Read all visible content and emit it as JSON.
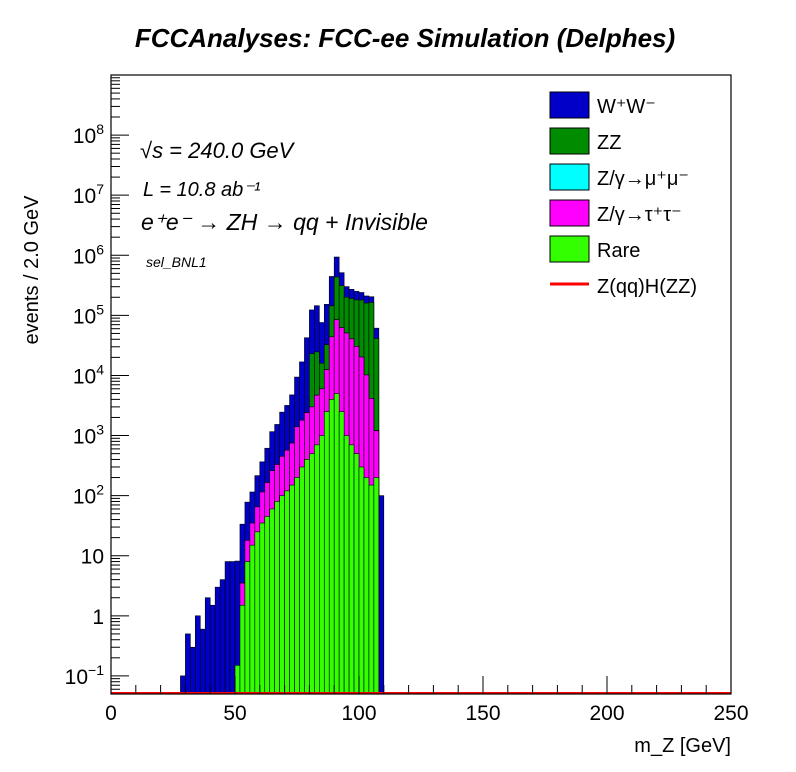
{
  "chart_data": {
    "type": "histogram-stack",
    "title": "FCCAnalyses: FCC-ee Simulation (Delphes)",
    "xlabel": "m_Z [GeV]",
    "ylabel": "events / 2.0 GeV",
    "xlim": [
      0,
      250
    ],
    "ylim": [
      0.05,
      1000000000
    ],
    "log_y": true,
    "bin_width": 2.0,
    "grid": false,
    "legend_position": "top-right",
    "x_ticks": [
      0,
      50,
      100,
      150,
      200,
      250
    ],
    "y_ticks": [
      {
        "value": 0.1,
        "label": "10",
        "exp": "−1"
      },
      {
        "value": 1,
        "label": "1",
        "exp": ""
      },
      {
        "value": 10,
        "label": "10",
        "exp": ""
      },
      {
        "value": 100,
        "label": "10",
        "exp": "2"
      },
      {
        "value": 1000,
        "label": "10",
        "exp": "3"
      },
      {
        "value": 10000,
        "label": "10",
        "exp": "4"
      },
      {
        "value": 100000,
        "label": "10",
        "exp": "5"
      },
      {
        "value": 1000000,
        "label": "10",
        "exp": "6"
      },
      {
        "value": 10000000,
        "label": "10",
        "exp": "7"
      },
      {
        "value": 100000000,
        "label": "10",
        "exp": "8"
      }
    ],
    "annotations": {
      "sqrt_s": "√s = 240.0 GeV",
      "lumi": "L = 10.8 ab⁻¹",
      "process": "e⁺e⁻ → ZH → qq + Invisible",
      "selection": "sel_BNL1"
    },
    "stack_totals_breakpoints": [
      [
        28,
        0.1
      ],
      [
        30,
        0.5
      ],
      [
        32,
        0.3
      ],
      [
        34,
        1.0
      ],
      [
        36,
        0.6
      ],
      [
        38,
        2.0
      ],
      [
        40,
        1.5
      ],
      [
        42,
        3.0
      ],
      [
        44,
        4.0
      ],
      [
        46,
        8.0
      ],
      [
        48,
        8.0
      ],
      [
        50,
        8.0
      ],
      [
        52,
        30
      ],
      [
        54,
        60
      ],
      [
        56,
        80
      ],
      [
        58,
        150
      ],
      [
        60,
        250
      ],
      [
        62,
        450
      ],
      [
        64,
        900
      ],
      [
        66,
        1200
      ],
      [
        68,
        2000
      ],
      [
        70,
        2600
      ],
      [
        72,
        4000
      ],
      [
        74,
        8000
      ],
      [
        76,
        15000
      ],
      [
        78,
        40000
      ],
      [
        80,
        100000
      ],
      [
        82,
        120000
      ],
      [
        84,
        60000
      ],
      [
        86,
        120000
      ],
      [
        88,
        400000
      ],
      [
        90,
        850000
      ],
      [
        92,
        450000
      ],
      [
        94,
        250000
      ],
      [
        96,
        230000
      ],
      [
        98,
        220000
      ],
      [
        100,
        220000
      ],
      [
        102,
        200000
      ],
      [
        104,
        200000
      ],
      [
        106,
        60000
      ],
      [
        108,
        100
      ],
      [
        110,
        0
      ]
    ],
    "series": [
      {
        "name": "W⁺W⁻",
        "color": "#0000c8",
        "values": [
          [
            28,
            0.1
          ],
          [
            30,
            0.5
          ],
          [
            32,
            0.3
          ],
          [
            34,
            1.0
          ],
          [
            36,
            0.6
          ],
          [
            38,
            2.0
          ],
          [
            40,
            1.5
          ],
          [
            42,
            3.0
          ],
          [
            44,
            4.0
          ],
          [
            46,
            8.0
          ],
          [
            48,
            8.0
          ],
          [
            50,
            8.0
          ],
          [
            52,
            30
          ],
          [
            54,
            60
          ],
          [
            56,
            80
          ],
          [
            58,
            150
          ],
          [
            60,
            250
          ],
          [
            62,
            450
          ],
          [
            64,
            900
          ],
          [
            66,
            1200
          ],
          [
            68,
            2000
          ],
          [
            70,
            2600
          ],
          [
            72,
            4000
          ],
          [
            74,
            8000
          ],
          [
            76,
            15000
          ],
          [
            78,
            40000
          ],
          [
            80,
            100000
          ],
          [
            82,
            120000
          ],
          [
            84,
            60000
          ],
          [
            86,
            120000
          ],
          [
            88,
            300000
          ],
          [
            90,
            500000
          ],
          [
            92,
            200000
          ],
          [
            94,
            100000
          ],
          [
            96,
            80000
          ],
          [
            98,
            70000
          ],
          [
            100,
            60000
          ],
          [
            102,
            50000
          ],
          [
            104,
            40000
          ],
          [
            106,
            20000
          ],
          [
            108,
            100
          ]
        ]
      },
      {
        "name": "ZZ",
        "color": "#008c00",
        "values": [
          [
            80,
            20000
          ],
          [
            82,
            20000
          ],
          [
            84,
            10000
          ],
          [
            86,
            20000
          ],
          [
            88,
            100000
          ],
          [
            90,
            350000
          ],
          [
            92,
            250000
          ],
          [
            94,
            150000
          ],
          [
            96,
            150000
          ],
          [
            98,
            150000
          ],
          [
            100,
            160000
          ],
          [
            102,
            150000
          ],
          [
            104,
            160000
          ],
          [
            106,
            40000
          ]
        ]
      },
      {
        "name": "Z/γ→μ⁺μ⁻",
        "color": "#00ffff",
        "values": [
          [
            74,
            0.6
          ],
          [
            78,
            0.6
          ],
          [
            86,
            15
          ],
          [
            88,
            18
          ],
          [
            90,
            12
          ],
          [
            92,
            5
          ],
          [
            94,
            8
          ],
          [
            96,
            5
          ],
          [
            98,
            8
          ],
          [
            100,
            5
          ],
          [
            102,
            5
          ],
          [
            104,
            3
          ],
          [
            106,
            12
          ]
        ]
      },
      {
        "name": "Z/γ→τ⁺τ⁻",
        "color": "#ff00ff",
        "values": [
          [
            52,
            2
          ],
          [
            54,
            10
          ],
          [
            56,
            20
          ],
          [
            58,
            40
          ],
          [
            60,
            80
          ],
          [
            62,
            120
          ],
          [
            64,
            200
          ],
          [
            66,
            250
          ],
          [
            68,
            350
          ],
          [
            70,
            450
          ],
          [
            72,
            600
          ],
          [
            74,
            1200
          ],
          [
            76,
            1500
          ],
          [
            78,
            2000
          ],
          [
            80,
            2500
          ],
          [
            82,
            4000
          ],
          [
            84,
            5000
          ],
          [
            86,
            10000
          ],
          [
            88,
            40000
          ],
          [
            90,
            80000
          ],
          [
            92,
            60000
          ],
          [
            94,
            50000
          ],
          [
            96,
            40000
          ],
          [
            98,
            30000
          ],
          [
            100,
            20000
          ],
          [
            102,
            10000
          ],
          [
            104,
            4000
          ],
          [
            106,
            1000
          ]
        ]
      },
      {
        "name": "Rare",
        "color": "#33ff00",
        "values": [
          [
            50,
            0.15
          ],
          [
            52,
            1.5
          ],
          [
            54,
            8
          ],
          [
            56,
            15
          ],
          [
            58,
            25
          ],
          [
            60,
            35
          ],
          [
            62,
            45
          ],
          [
            64,
            60
          ],
          [
            66,
            80
          ],
          [
            68,
            100
          ],
          [
            70,
            120
          ],
          [
            72,
            150
          ],
          [
            74,
            200
          ],
          [
            76,
            300
          ],
          [
            78,
            400
          ],
          [
            80,
            500
          ],
          [
            82,
            700
          ],
          [
            84,
            1000
          ],
          [
            86,
            2500
          ],
          [
            88,
            4000
          ],
          [
            90,
            5000
          ],
          [
            92,
            2500
          ],
          [
            94,
            1000
          ],
          [
            96,
            700
          ],
          [
            98,
            500
          ],
          [
            100,
            300
          ],
          [
            102,
            200
          ],
          [
            104,
            150
          ],
          [
            106,
            200
          ]
        ]
      },
      {
        "name": "Z(qq)H(ZZ)",
        "color": "#ff0000",
        "values": [],
        "style": "line"
      }
    ]
  }
}
